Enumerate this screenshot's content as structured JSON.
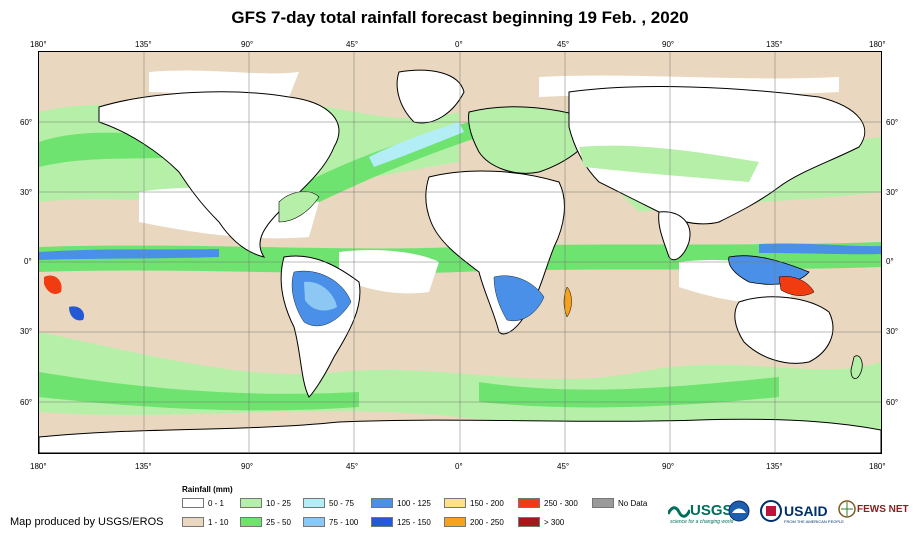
{
  "title": "GFS 7-day total rainfall forecast beginning 19 Feb. , 2020",
  "lon_labels": [
    "180°",
    "135°",
    "90°",
    "45°",
    "0°",
    "45°",
    "90°",
    "135°",
    "180°"
  ],
  "lat_labels": [
    "60°",
    "30°",
    "0°",
    "30°",
    "60°"
  ],
  "legend": {
    "title": "Rainfall (mm)",
    "items": [
      {
        "label": "0 - 1",
        "color": "#ffffff"
      },
      {
        "label": "1 - 10",
        "color": "#e9d8bf"
      },
      {
        "label": "10 - 25",
        "color": "#b6f0a8"
      },
      {
        "label": "25 - 50",
        "color": "#6fe36f"
      },
      {
        "label": "50 - 75",
        "color": "#b3eef7"
      },
      {
        "label": "75 - 100",
        "color": "#8dc8f5"
      },
      {
        "label": "100 - 125",
        "color": "#4a90e8"
      },
      {
        "label": "125 - 150",
        "color": "#2459d6"
      },
      {
        "label": "150 - 200",
        "color": "#fde18a"
      },
      {
        "label": "200 - 250",
        "color": "#f7a21a"
      },
      {
        "label": "250 - 300",
        "color": "#f03c10"
      },
      {
        "label": "> 300",
        "color": "#a41a1a"
      },
      {
        "label": "No Data",
        "color": "#9a9a9a"
      }
    ]
  },
  "credit": "Map produced by USGS/EROS",
  "logos": {
    "usgs": "USGS",
    "usgs_tagline": "science for a changing world",
    "usaid": "USAID",
    "usaid_tagline": "FROM THE AMERICAN PEOPLE",
    "fews": "FEWS NET"
  }
}
